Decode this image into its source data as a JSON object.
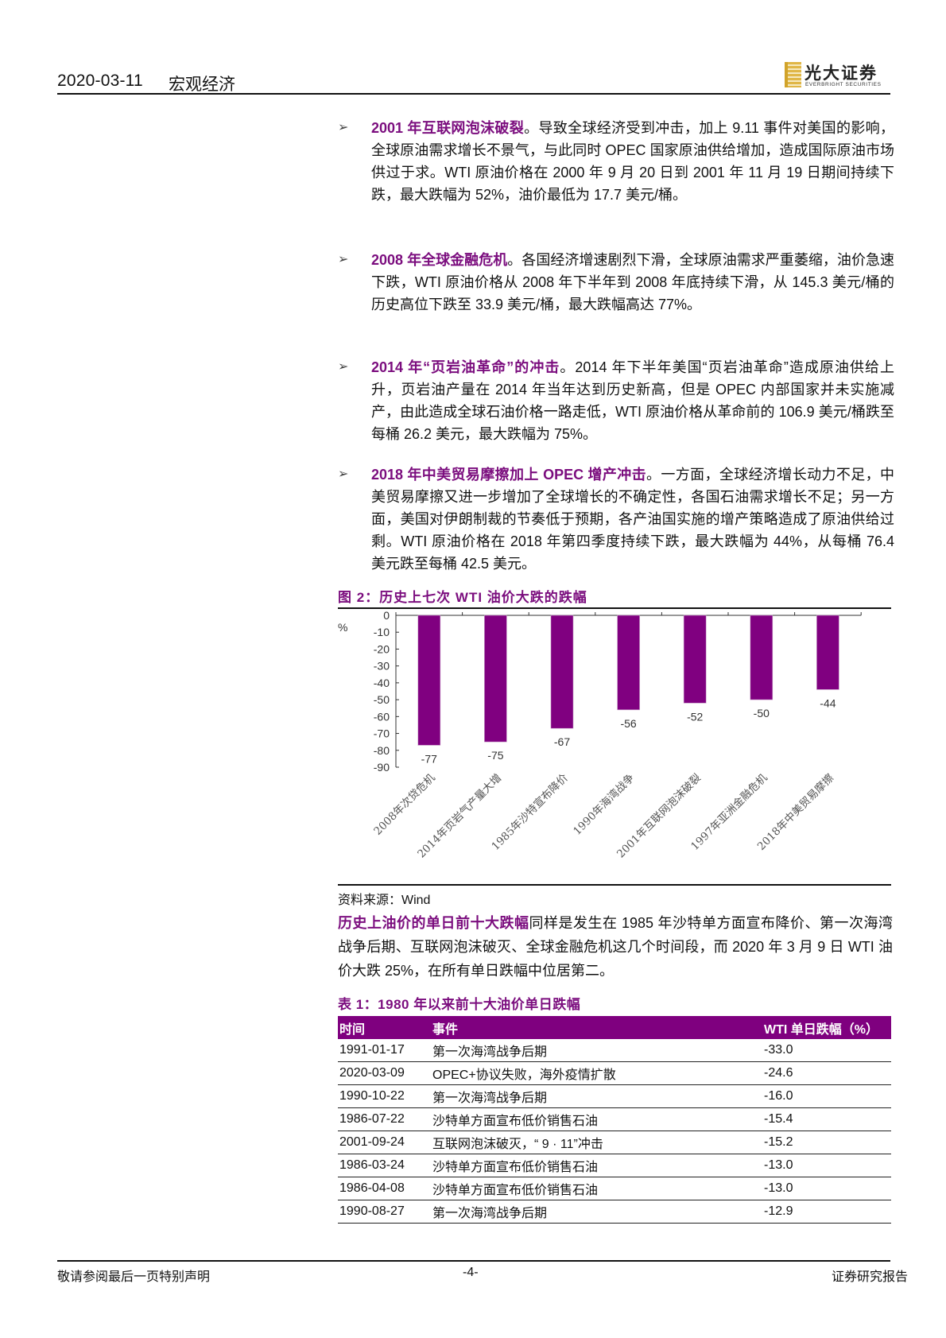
{
  "header": {
    "date": "2020-03-11",
    "section": "宏观经济",
    "logo": {
      "cn": "光大证券",
      "en": "EVERBRIGHT SECURITIES"
    }
  },
  "bullets": [
    {
      "marker": "➢",
      "highlight": "2001 年互联网泡沫破裂",
      "text": "。导致全球经济受到冲击，加上 9.11 事件对美国的影响，全球原油需求增长不景气，与此同时 OPEC 国家原油供给增加，造成国际原油市场供过于求。WTI 原油价格在 2000 年 9 月 20 日到 2001 年 11 月 19 日期间持续下跌，最大跌幅为 52%，油价最低为 17.7 美元/桶。"
    },
    {
      "marker": "➢",
      "highlight": "2008 年全球金融危机",
      "text": "。各国经济增速剧烈下滑，全球原油需求严重萎缩，油价急速下跌，WTI 原油价格从 2008 年下半年到 2008 年底持续下滑，从 145.3 美元/桶的历史高位下跌至 33.9 美元/桶，最大跌幅高达 77%。"
    },
    {
      "marker": "➢",
      "highlight": "2014 年“页岩油革命”的冲击",
      "text": "。2014 年下半年美国“页岩油革命”造成原油供给上升，页岩油产量在 2014 年当年达到历史新高，但是 OPEC 内部国家并未实施减产，由此造成全球石油价格一路走低，WTI 原油价格从革命前的 106.9 美元/桶跌至每桶 26.2 美元，最大跌幅为 75%。"
    },
    {
      "marker": "➢",
      "highlight": "2018 年中美贸易摩擦加上 OPEC 增产冲击",
      "text": "。一方面，全球经济增长动力不足，中美贸易摩擦又进一步增加了全球增长的不确定性，各国石油需求增长不足；另一方面，美国对伊朗制裁的节奏低于预期，各产油国实施的增产策略造成了原油供给过剩。WTI 原油价格在 2018 年第四季度持续下跌，最大跌幅为 44%，从每桶 76.4 美元跌至每桶 42.5 美元。"
    }
  ],
  "figure": {
    "title": "图 2：历史上七次 WTI 油价大跌的跌幅",
    "source": "资料来源：Wind"
  },
  "chart_data": {
    "type": "bar",
    "title": "历史上七次 WTI 油价大跌的跌幅",
    "categories": [
      "2008年次贷危机",
      "2014年页岩气产量大增",
      "1985年沙特宣布降价",
      "1990年海湾战争",
      "2001年互联网泡沫破裂",
      "1997年亚洲金融危机",
      "2018年中美贸易摩擦"
    ],
    "values": [
      -77,
      -75,
      -67,
      -56,
      -52,
      -50,
      -44
    ],
    "xlabel": "",
    "ylabel": "%",
    "ylim": [
      -90,
      0
    ],
    "yticks": [
      0,
      -10,
      -20,
      -30,
      -40,
      -50,
      -60,
      -70,
      -80,
      -90
    ],
    "bar_color": "#800080",
    "data_labels": true,
    "grid": false,
    "legend": "none"
  },
  "paragraph": {
    "highlight": "历史上油价的单日前十大跌幅",
    "text": "同样是发生在 1985 年沙特单方面宣布降价、第一次海湾战争后期、互联网泡沫破灭、全球金融危机这几个时间段，而 2020 年 3 月 9 日 WTI 油价大跌 25%，在所有单日跌幅中位居第二。"
  },
  "table": {
    "title": "表 1：1980 年以来前十大油价单日跌幅",
    "columns": [
      "时间",
      "事件",
      "WTI 单日跌幅（%）"
    ],
    "rows": [
      [
        "1991-01-17",
        "第一次海湾战争后期",
        "-33.0"
      ],
      [
        "2020-03-09",
        "OPEC+协议失败，海外疫情扩散",
        "-24.6"
      ],
      [
        "1990-10-22",
        "第一次海湾战争后期",
        "-16.0"
      ],
      [
        "1986-07-22",
        "沙特单方面宣布低价销售石油",
        "-15.4"
      ],
      [
        "2001-09-24",
        "互联网泡沫破灭，“ 9 · 11”冲击",
        "-15.2"
      ],
      [
        "1986-03-24",
        "沙特单方面宣布低价销售石油",
        "-13.0"
      ],
      [
        "1986-04-08",
        "沙特单方面宣布低价销售石油",
        "-13.0"
      ],
      [
        "1990-08-27",
        "第一次海湾战争后期",
        "-12.9"
      ]
    ]
  },
  "footer": {
    "left": "敬请参阅最后一页特别声明",
    "page": "-4-",
    "right": "证券研究报告"
  },
  "colors": {
    "accent": "#7b0d7e",
    "table_header_bg": "#7f007f",
    "bar": "#800080"
  }
}
